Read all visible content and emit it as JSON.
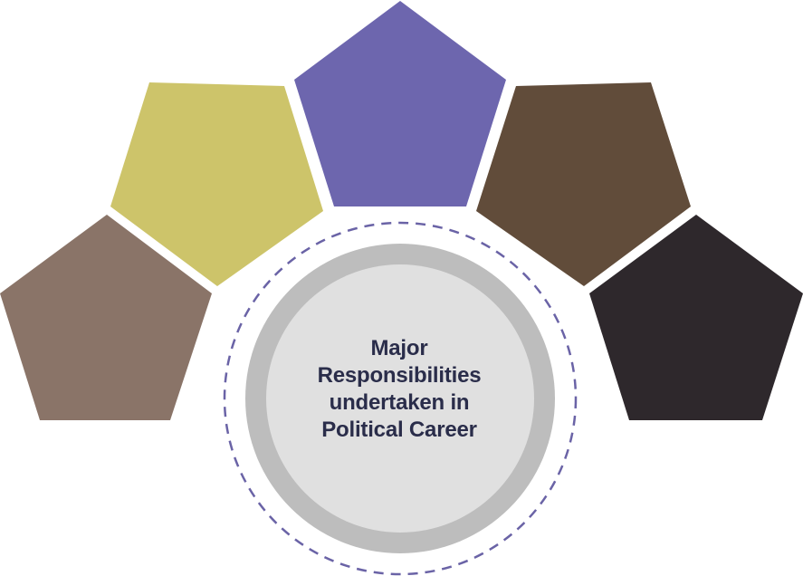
{
  "center": {
    "lines": [
      "Major",
      "Responsibilities",
      "undertaken in",
      "Political Career"
    ]
  },
  "pentagons": [
    {
      "name": "pentagon-taupe",
      "color": "#8a7468"
    },
    {
      "name": "pentagon-olive",
      "color": "#cdc46a"
    },
    {
      "name": "pentagon-purple",
      "color": "#6d66ae"
    },
    {
      "name": "pentagon-brown",
      "color": "#614c3a"
    },
    {
      "name": "pentagon-dark",
      "color": "#2e282c"
    }
  ],
  "colors": {
    "dashed_ring": "#6a63a6",
    "outer_ring": "#bdbdbd",
    "inner_disc": "#e0e0e0",
    "text": "#2a2d4a"
  }
}
